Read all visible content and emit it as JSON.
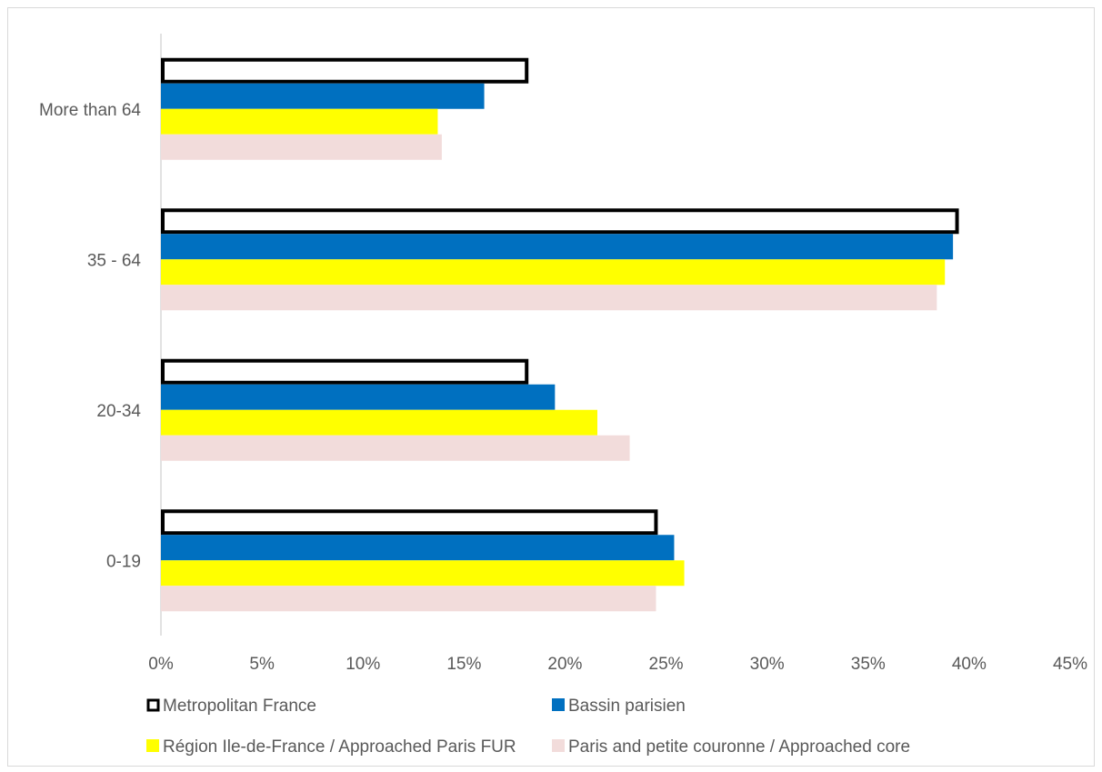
{
  "chart_data": {
    "type": "bar",
    "orientation": "horizontal",
    "categories": [
      "0-19",
      "20-34",
      "35 - 64",
      "More than 64"
    ],
    "series": [
      {
        "name": "Metropolitan France",
        "values": [
          24.5,
          18.1,
          39.4,
          18.1
        ],
        "color": "#ffffff",
        "stroke": "#000000"
      },
      {
        "name": "Bassin parisien",
        "values": [
          25.4,
          19.5,
          39.2,
          16.0
        ],
        "color": "#0070c0"
      },
      {
        "name": "Région Ile-de-France / Approached Paris FUR",
        "values": [
          25.9,
          21.6,
          38.8,
          13.7
        ],
        "color": "#ffff00"
      },
      {
        "name": "Paris and petite couronne / Approached core",
        "values": [
          24.5,
          23.2,
          38.4,
          13.9
        ],
        "color": "#f2dcdb"
      }
    ],
    "x_ticks": [
      "0%",
      "5%",
      "10%",
      "15%",
      "20%",
      "25%",
      "30%",
      "35%",
      "40%",
      "45%"
    ],
    "xlim": [
      0,
      45
    ],
    "grid": false,
    "legend_position": "bottom",
    "title": "",
    "xlabel": "",
    "ylabel": ""
  }
}
